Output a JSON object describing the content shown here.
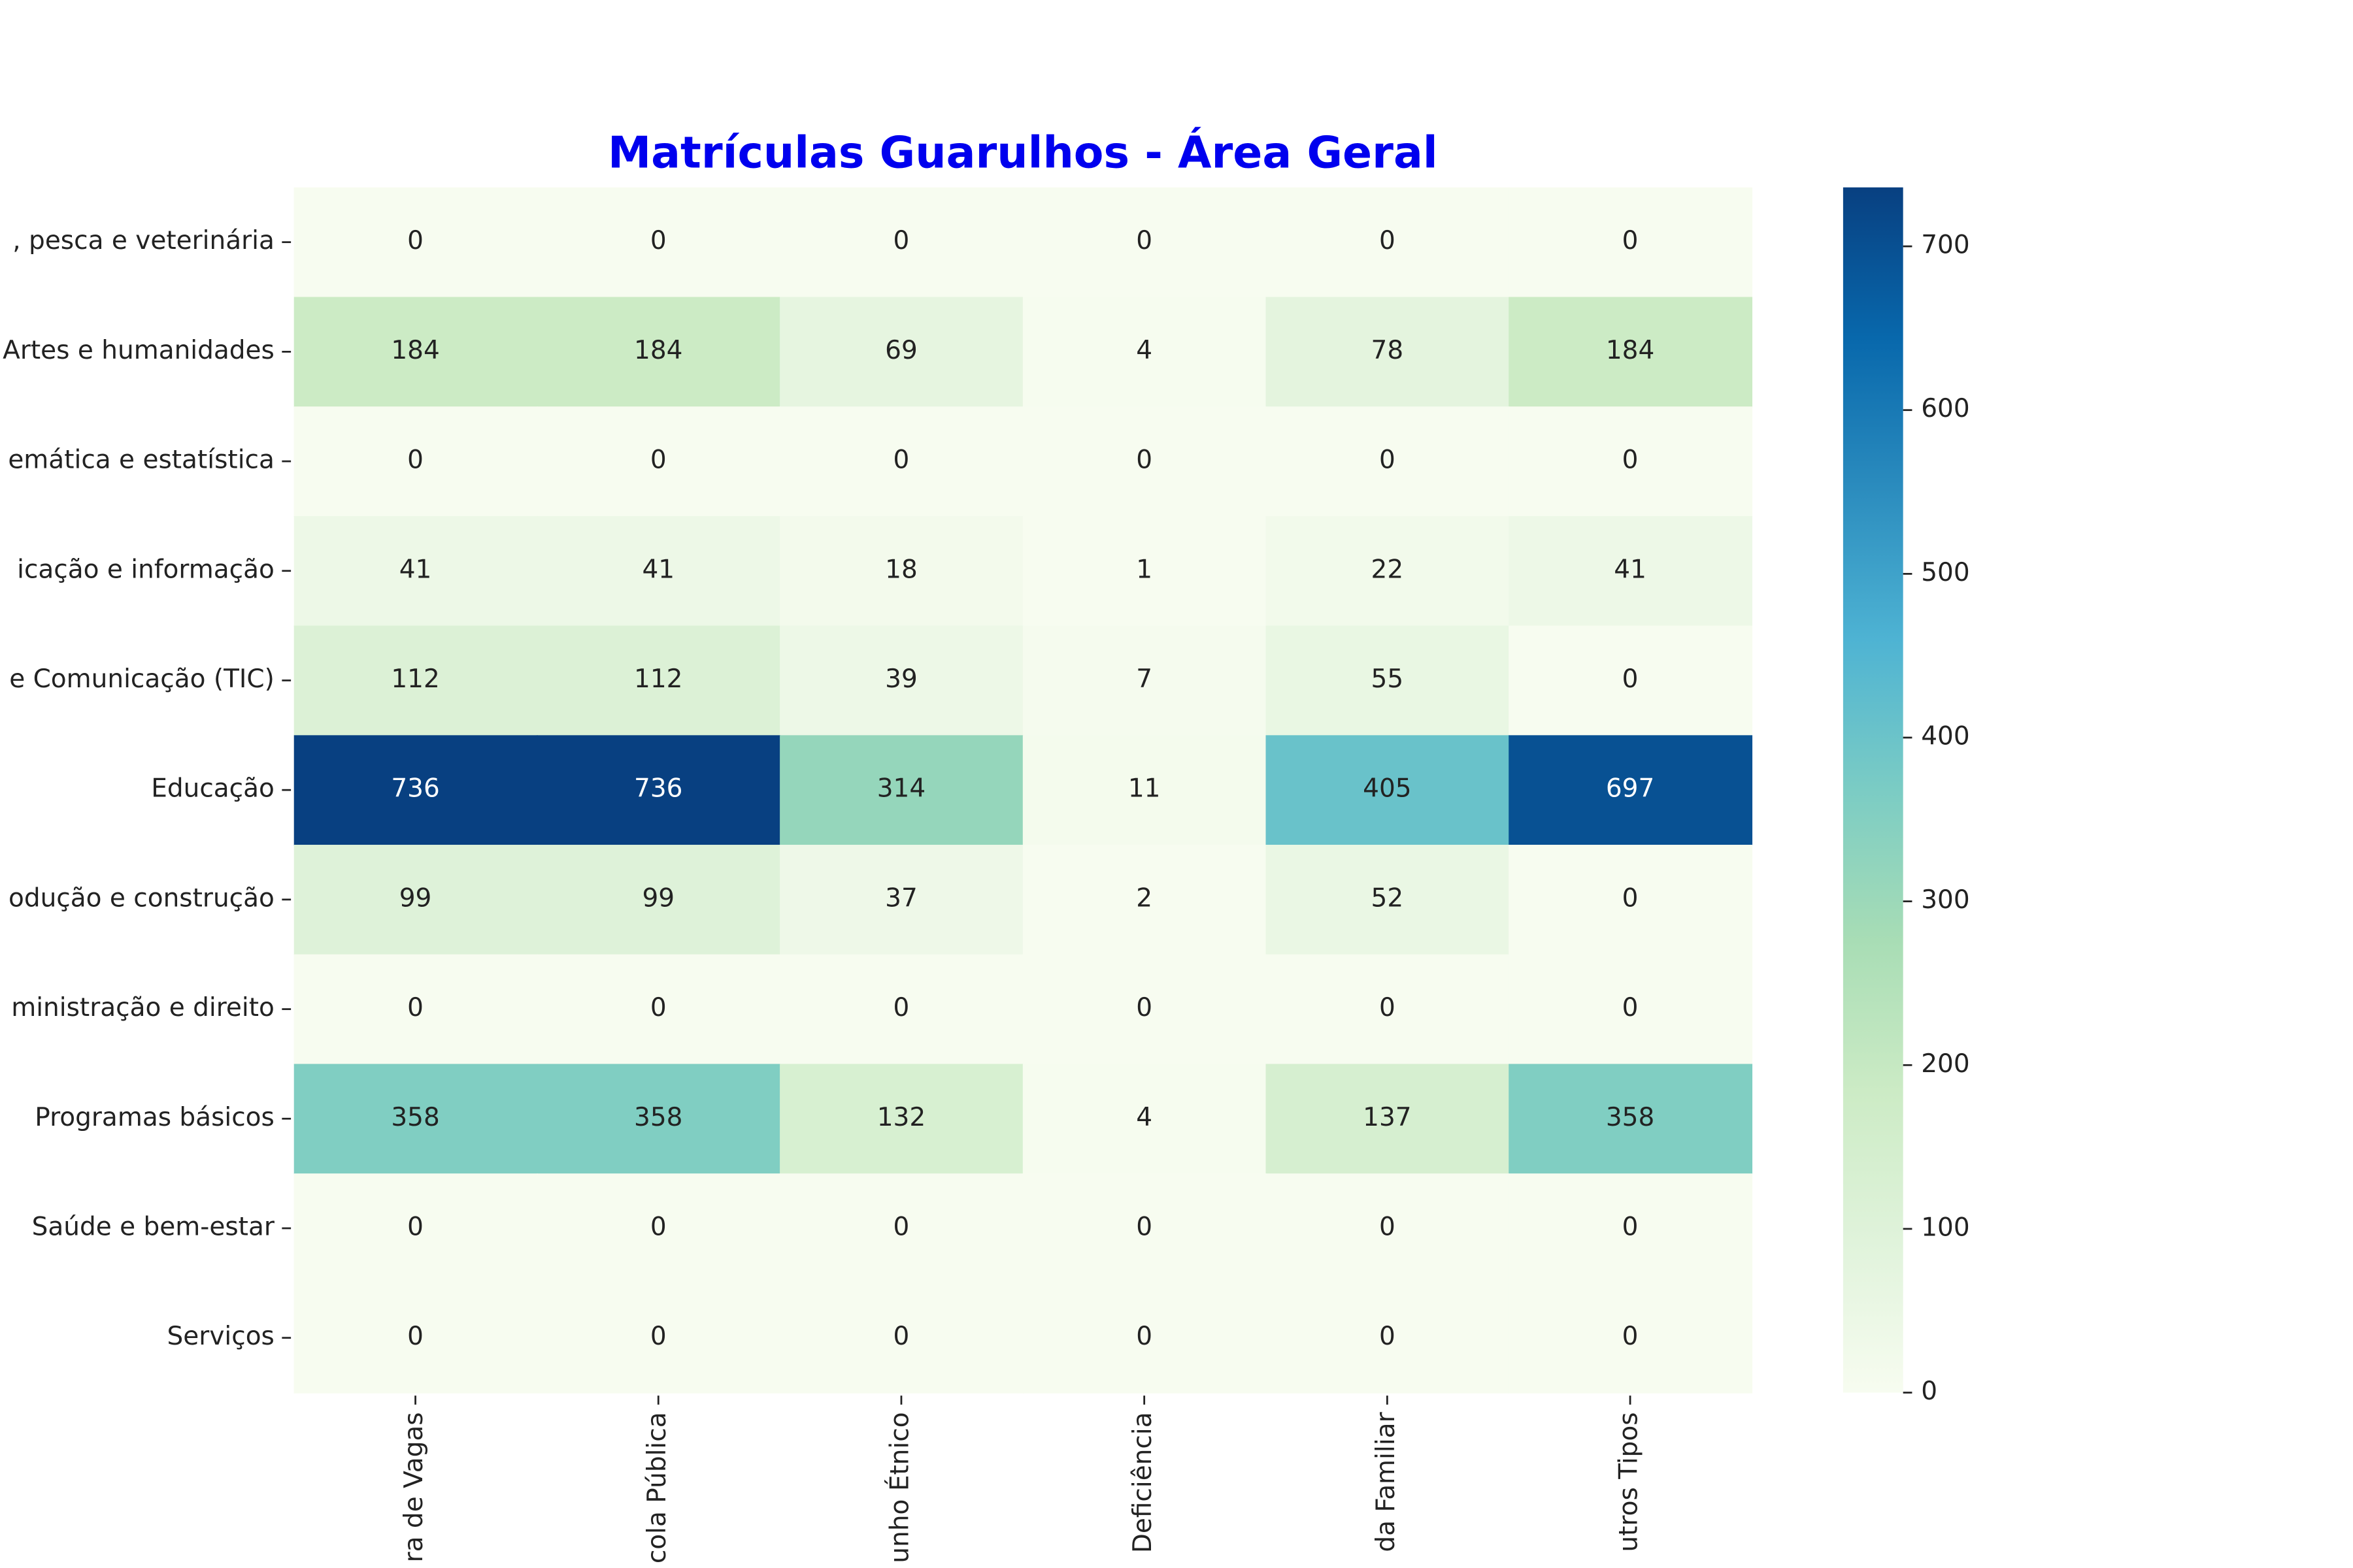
{
  "chart_data": {
    "type": "heatmap",
    "title": "Matrículas Guarulhos - Área Geral",
    "title_color": "#0000ee",
    "rows": [
      ", pesca e veterinária",
      "Artes e humanidades",
      "emática e estatística",
      "icação e informação",
      "e Comunicação (TIC)",
      "Educação",
      "odução e construção",
      "ministração e direito",
      "Programas básicos",
      "Saúde e bem-estar",
      "Serviços"
    ],
    "columns": [
      "ra de Vagas",
      "cola Pública",
      "unho Étnico",
      "Deficiência",
      "da Familiar",
      "utros Tipos"
    ],
    "values": [
      [
        0,
        0,
        0,
        0,
        0,
        0
      ],
      [
        184,
        184,
        69,
        4,
        78,
        184
      ],
      [
        0,
        0,
        0,
        0,
        0,
        0
      ],
      [
        41,
        41,
        18,
        1,
        22,
        41
      ],
      [
        112,
        112,
        39,
        7,
        55,
        0
      ],
      [
        736,
        736,
        314,
        11,
        405,
        697
      ],
      [
        99,
        99,
        37,
        2,
        52,
        0
      ],
      [
        0,
        0,
        0,
        0,
        0,
        0
      ],
      [
        358,
        358,
        132,
        4,
        137,
        358
      ],
      [
        0,
        0,
        0,
        0,
        0,
        0
      ],
      [
        0,
        0,
        0,
        0,
        0,
        0
      ]
    ],
    "zlim": [
      0,
      736
    ],
    "zticks": [
      0,
      100,
      200,
      300,
      400,
      500,
      600,
      700
    ],
    "colormap": [
      "#f7fcf0",
      "#e0f3db",
      "#ccebc5",
      "#a8ddb5",
      "#7bccc4",
      "#4eb3d3",
      "#2b8cbe",
      "#0868ac",
      "#084081"
    ]
  }
}
